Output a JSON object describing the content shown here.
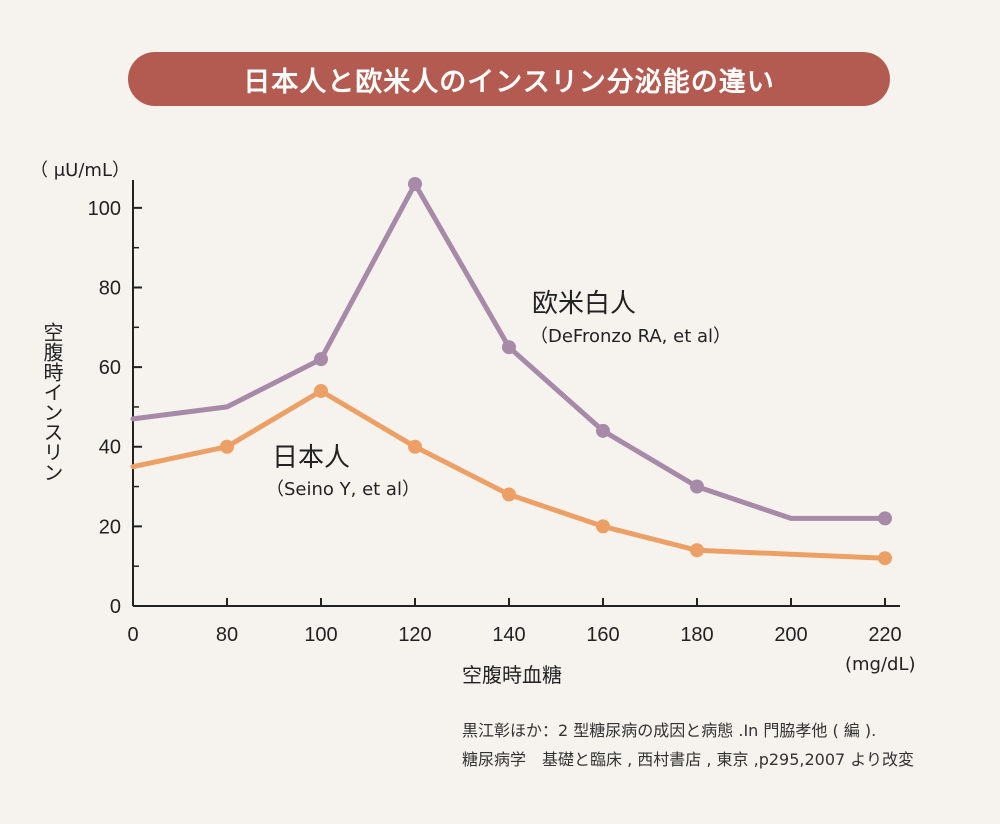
{
  "title": "日本人と欧米人のインスリン分泌能の違い",
  "colors": {
    "title_bg": "#b35b50",
    "western_line": "#a68aa8",
    "japanese_line": "#eca066",
    "axis": "#222222"
  },
  "source": {
    "line1": "黒江彰ほか：2 型糖尿病の成因と病態 .In 門脇孝他 ( 編 ).",
    "line2": "糖尿病学　基礎と臨床 , 西村書店 , 東京 ,p295,2007 より改変"
  },
  "chart_data": {
    "type": "line",
    "x_tick_labels": [
      "0",
      "80",
      "100",
      "120",
      "140",
      "160",
      "180",
      "200",
      "220"
    ],
    "y_ticks": [
      0,
      20,
      40,
      60,
      80,
      100
    ],
    "ylim": [
      0,
      107
    ],
    "xlabel": "空腹時血糖",
    "x_unit": "(mg/dL)",
    "ylabel": "空腹時インスリン",
    "y_unit": "（ μU/mL）",
    "grid": false,
    "series": [
      {
        "name": "欧米白人",
        "source": "（DeFronzo RA, et al）",
        "color": "#a68aa8",
        "points": [
          {
            "x": 0,
            "y": 47,
            "marker": false
          },
          {
            "x": 80,
            "y": 50,
            "marker": false
          },
          {
            "x": 100,
            "y": 62,
            "marker": true
          },
          {
            "x": 120,
            "y": 106,
            "marker": true
          },
          {
            "x": 140,
            "y": 65,
            "marker": true
          },
          {
            "x": 160,
            "y": 44,
            "marker": true
          },
          {
            "x": 180,
            "y": 30,
            "marker": true
          },
          {
            "x": 200,
            "y": 22,
            "marker": false
          },
          {
            "x": 220,
            "y": 22,
            "marker": true
          }
        ]
      },
      {
        "name": "日本人",
        "source": "（Seino Y, et al）",
        "color": "#eca066",
        "points": [
          {
            "x": 0,
            "y": 35,
            "marker": false
          },
          {
            "x": 80,
            "y": 40,
            "marker": true
          },
          {
            "x": 100,
            "y": 54,
            "marker": true
          },
          {
            "x": 120,
            "y": 40,
            "marker": true
          },
          {
            "x": 140,
            "y": 28,
            "marker": true
          },
          {
            "x": 160,
            "y": 20,
            "marker": true
          },
          {
            "x": 180,
            "y": 14,
            "marker": true
          },
          {
            "x": 220,
            "y": 12,
            "marker": true
          }
        ]
      }
    ]
  }
}
